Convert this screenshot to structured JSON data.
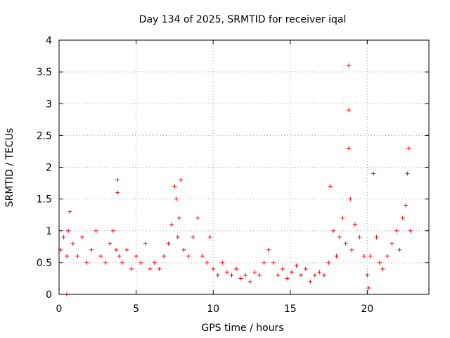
{
  "chart_data": {
    "type": "scatter",
    "title": "Day 134 of 2025, SRMTID for receiver iqal",
    "xlabel": "GPS time / hours",
    "ylabel": "SRMTID / TECUs",
    "xlim": [
      0,
      24
    ],
    "ylim": [
      0,
      4
    ],
    "xticks": [
      "0",
      "5",
      "10",
      "15",
      "20"
    ],
    "yticks": [
      "0",
      "0.5",
      "1",
      "1.5",
      "2",
      "2.5",
      "3",
      "3.5",
      "4"
    ],
    "grid": true,
    "marker": "+",
    "color": "#ff0000",
    "series": [
      {
        "name": "SRMTID",
        "x": [
          0.1,
          0.3,
          0.5,
          0.5,
          0.6,
          0.7,
          0.9,
          1.2,
          1.5,
          1.8,
          2.1,
          2.4,
          2.7,
          3.0,
          3.3,
          3.5,
          3.7,
          3.8,
          3.8,
          3.9,
          4.1,
          4.4,
          4.7,
          5.0,
          5.3,
          5.6,
          5.9,
          6.2,
          6.5,
          6.8,
          7.1,
          7.3,
          7.5,
          7.6,
          7.7,
          7.8,
          7.9,
          8.1,
          8.4,
          8.7,
          9.0,
          9.3,
          9.6,
          9.8,
          10.0,
          10.3,
          10.6,
          10.9,
          11.2,
          11.5,
          11.8,
          12.1,
          12.4,
          12.7,
          13.0,
          13.3,
          13.6,
          13.9,
          14.2,
          14.5,
          14.8,
          15.1,
          15.4,
          15.7,
          16.0,
          16.3,
          16.6,
          16.9,
          17.2,
          17.5,
          17.6,
          17.8,
          18.0,
          18.2,
          18.4,
          18.6,
          18.8,
          18.8,
          18.8,
          18.9,
          19.0,
          19.2,
          19.5,
          19.8,
          20.0,
          20.1,
          20.2,
          20.4,
          20.6,
          20.8,
          21.0,
          21.3,
          21.6,
          21.9,
          22.1,
          22.3,
          22.5,
          22.6,
          22.7,
          22.8
        ],
        "y": [
          0.7,
          0.9,
          0.0,
          0.6,
          1.0,
          1.3,
          0.8,
          0.6,
          0.9,
          0.5,
          0.7,
          1.0,
          0.6,
          0.5,
          0.8,
          1.0,
          0.7,
          1.8,
          1.6,
          0.6,
          0.5,
          0.7,
          0.4,
          0.6,
          0.5,
          0.8,
          0.4,
          0.5,
          0.4,
          0.6,
          0.8,
          1.1,
          1.7,
          1.5,
          0.9,
          1.2,
          1.8,
          0.7,
          0.6,
          0.9,
          1.2,
          0.6,
          0.5,
          0.9,
          0.4,
          0.3,
          0.5,
          0.35,
          0.3,
          0.4,
          0.25,
          0.3,
          0.2,
          0.35,
          0.3,
          0.5,
          0.7,
          0.5,
          0.3,
          0.4,
          0.25,
          0.35,
          0.45,
          0.3,
          0.4,
          0.2,
          0.3,
          0.35,
          0.3,
          0.5,
          1.7,
          1.0,
          0.6,
          0.9,
          1.2,
          0.8,
          3.6,
          2.9,
          2.3,
          1.5,
          0.7,
          1.1,
          0.9,
          0.6,
          0.3,
          0.1,
          0.6,
          1.9,
          0.9,
          0.5,
          0.4,
          0.6,
          0.8,
          1.0,
          0.7,
          1.2,
          1.4,
          1.9,
          2.3,
          1.0
        ]
      }
    ]
  }
}
